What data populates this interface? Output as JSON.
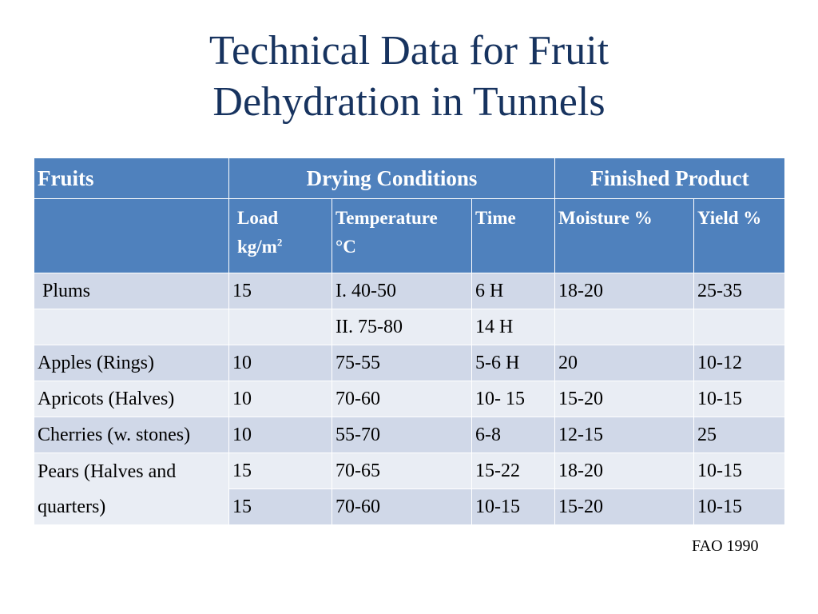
{
  "title_line1": "Technical Data for Fruit",
  "title_line2": "Dehydration in Tunnels",
  "headers": {
    "fruits": "Fruits",
    "drying_conditions": "Drying Conditions",
    "finished_product": "Finished Product",
    "load_line1": "Load",
    "load_line2": "kg/m",
    "load_sup": "2",
    "temperature_line1": "Temperature",
    "temperature_line2": "°C",
    "time": "Time",
    "moisture": "Moisture %",
    "yield": "Yield %"
  },
  "rows": {
    "plums": {
      "fruit": "Plums",
      "load": "15",
      "temp": "I. 40-50",
      "time": "6 H",
      "moisture": "18-20",
      "yield": "25-35"
    },
    "plums2": {
      "fruit": "",
      "load": "",
      "temp": "II. 75-80",
      "time": "14 H",
      "moisture": "",
      "yield": ""
    },
    "apples": {
      "fruit": "Apples (Rings)",
      "load": "10",
      "temp": "75-55",
      "time": "5-6 H",
      "moisture": "20",
      "yield": "10-12"
    },
    "apricots": {
      "fruit": "Apricots (Halves)",
      "load": "10",
      "temp": "70-60",
      "time": "10- 15",
      "moisture": "15-20",
      "yield": "10-15"
    },
    "cherries": {
      "fruit": "Cherries (w. stones)",
      "load": "10",
      "temp": "55-70",
      "time": "6-8",
      "moisture": "12-15",
      "yield": "25"
    },
    "pears": {
      "fruit_line1": "Pears (Halves and",
      "fruit_line2": "quarters)",
      "load": "15",
      "temp": "70-65",
      "time": "15-22",
      "moisture": "18-20",
      "yield": "10-15"
    },
    "pears2": {
      "load": "15",
      "temp": "70-60",
      "time": "10-15",
      "moisture": "15-20",
      "yield": "10-15"
    }
  },
  "source": "FAO 1990",
  "colors": {
    "title": "#17335f",
    "header": "#4f81bd",
    "row_odd": "#d0d8e8",
    "row_even": "#e9edf4"
  }
}
